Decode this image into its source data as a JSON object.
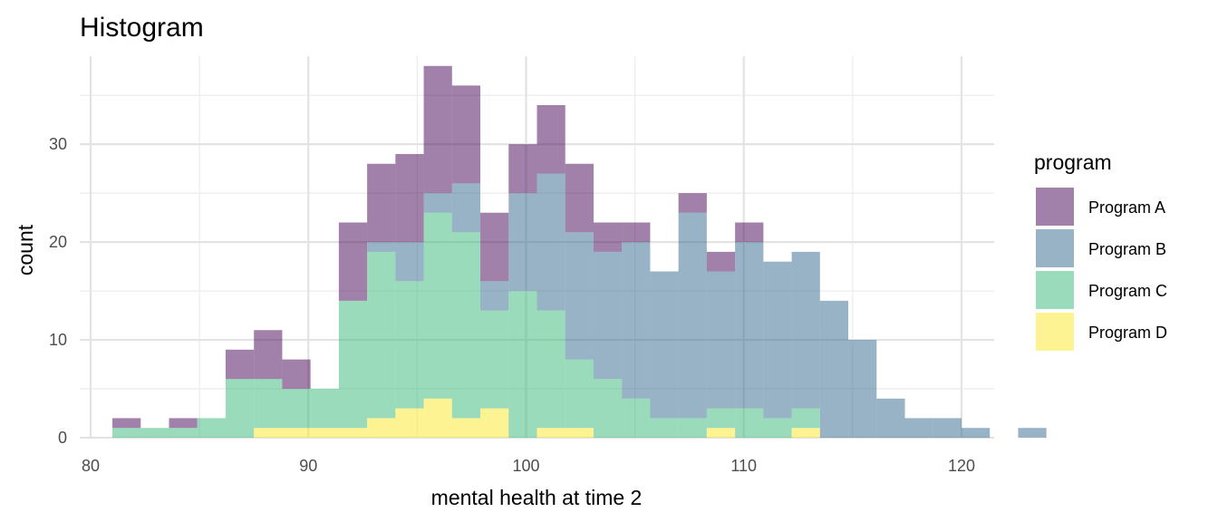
{
  "chart_data": {
    "type": "histogram",
    "title": "Histogram",
    "xlabel": "mental health at time 2",
    "ylabel": "count",
    "xlim": [
      79.5,
      121.5
    ],
    "ylim": [
      0,
      39
    ],
    "x_ticks": [
      80,
      90,
      100,
      110,
      120
    ],
    "y_ticks": [
      0,
      10,
      20,
      30
    ],
    "grid": true,
    "stacked": true,
    "bin_start": 81,
    "bin_width": 1.3,
    "legend": {
      "title": "program",
      "position": "right"
    },
    "series": [
      {
        "name": "Program D",
        "color": "#FDE725",
        "values": [
          0,
          0,
          0,
          0,
          0,
          1,
          1,
          1,
          1,
          2,
          3,
          4,
          2,
          3,
          0,
          1,
          1,
          0,
          0,
          0,
          0,
          1,
          0,
          0,
          1,
          0,
          0,
          0,
          0,
          0,
          0,
          0,
          0
        ]
      },
      {
        "name": "Program C",
        "color": "#35B779",
        "values": [
          1,
          1,
          1,
          2,
          6,
          5,
          4,
          4,
          13,
          17,
          13,
          19,
          19,
          10,
          15,
          12,
          7,
          6,
          4,
          2,
          2,
          2,
          3,
          2,
          2,
          0,
          0,
          0,
          0,
          0,
          0,
          0,
          0
        ]
      },
      {
        "name": "Program B",
        "color": "#31688E",
        "values": [
          0,
          0,
          0,
          0,
          0,
          0,
          0,
          0,
          0,
          1,
          4,
          2,
          5,
          3,
          10,
          14,
          13,
          13,
          16,
          15,
          21,
          14,
          17,
          16,
          16,
          14,
          10,
          4,
          2,
          2,
          1,
          0,
          1
        ]
      },
      {
        "name": "Program A",
        "color": "#440154",
        "values": [
          1,
          0,
          1,
          0,
          3,
          5,
          3,
          0,
          8,
          8,
          9,
          13,
          10,
          7,
          5,
          7,
          7,
          3,
          2,
          0,
          2,
          2,
          2,
          0,
          0,
          0,
          0,
          0,
          0,
          0,
          0,
          0,
          0
        ]
      }
    ]
  }
}
